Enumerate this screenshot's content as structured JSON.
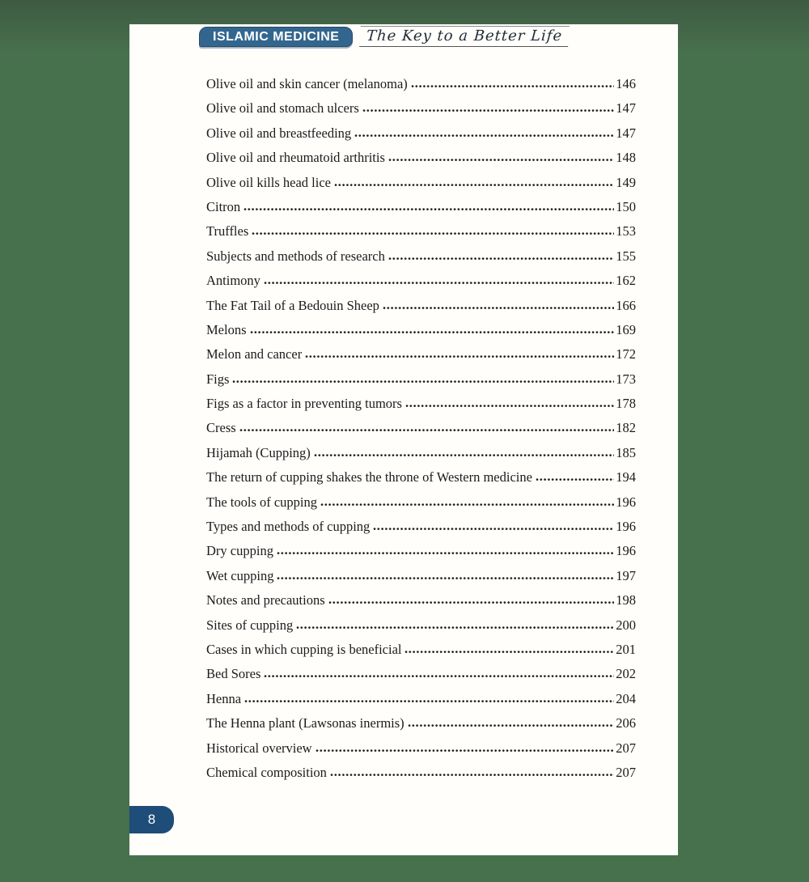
{
  "header": {
    "badge_label": "ISLAMIC MEDICINE",
    "tagline": "The Key to a Better Life",
    "badge_color": "#33668f"
  },
  "colors": {
    "background_green": "#47704d",
    "page_white": "#fffefb",
    "footer_badge_blue": "#1d4d78",
    "text": "#1b1b1b"
  },
  "toc": {
    "entries": [
      {
        "title": "Olive oil and skin cancer (melanoma)",
        "page": "146"
      },
      {
        "title": "Olive oil and stomach ulcers",
        "page": "147"
      },
      {
        "title": "Olive oil and breastfeeding",
        "page": "147"
      },
      {
        "title": "Olive oil and rheumatoid arthritis",
        "page": "148"
      },
      {
        "title": "Olive oil kills head lice",
        "page": "149"
      },
      {
        "title": "Citron",
        "page": "150"
      },
      {
        "title": "Truffles",
        "page": "153"
      },
      {
        "title": "Subjects and methods of research",
        "page": "155"
      },
      {
        "title": "Antimony",
        "page": "162"
      },
      {
        "title": "The Fat Tail of a Bedouin Sheep",
        "page": "166"
      },
      {
        "title": "Melons",
        "page": "169"
      },
      {
        "title": "Melon and cancer",
        "page": "172"
      },
      {
        "title": "Figs",
        "page": "173"
      },
      {
        "title": "Figs as a factor in preventing tumors",
        "page": "178"
      },
      {
        "title": "Cress",
        "page": "182"
      },
      {
        "title": "Hijamah (Cupping)",
        "page": "185"
      },
      {
        "title": "The return of cupping shakes the throne of Western medicine",
        "page": "194"
      },
      {
        "title": "The tools of cupping",
        "page": "196"
      },
      {
        "title": "Types and methods of cupping",
        "page": "196"
      },
      {
        "title": "Dry cupping",
        "page": "196"
      },
      {
        "title": "Wet cupping",
        "page": "197"
      },
      {
        "title": "Notes and precautions",
        "page": "198"
      },
      {
        "title": "Sites of cupping",
        "page": "200"
      },
      {
        "title": "Cases in which cupping is beneficial",
        "page": "201"
      },
      {
        "title": "Bed Sores",
        "page": "202"
      },
      {
        "title": "Henna",
        "page": "204"
      },
      {
        "title": "The Henna plant (Lawsonas inermis)",
        "page": "206"
      },
      {
        "title": "Historical overview",
        "page": "207"
      },
      {
        "title": "Chemical composition",
        "page": "207"
      }
    ]
  },
  "footer": {
    "page_number": "8"
  }
}
